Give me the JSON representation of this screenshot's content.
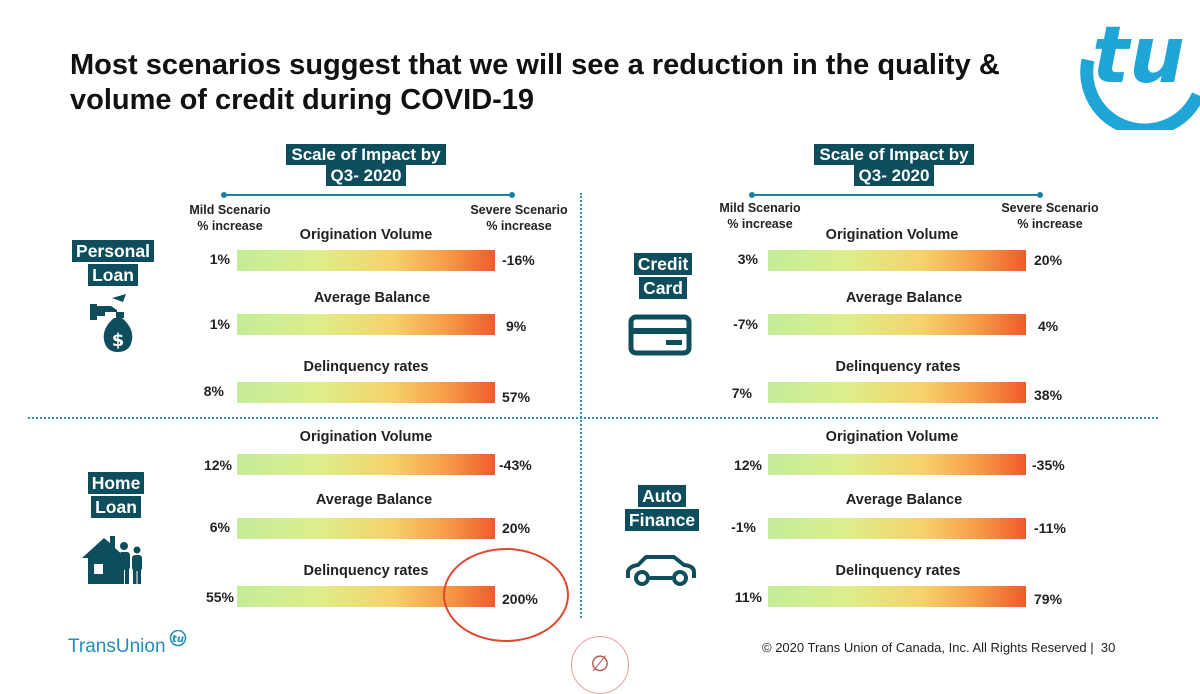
{
  "slide": {
    "title": "Most scenarios suggest that we will see a reduction in the quality & volume of credit during COVID-19",
    "copyright": "© 2020 Trans Union of Canada, Inc. All Rights Reserved |",
    "page_number": "30",
    "footer_brand": "TransUnion",
    "logo_text": "tu",
    "nav_glyph": "∅"
  },
  "scale": {
    "header": [
      "Scale of Impact by",
      "Q3- 2020"
    ],
    "mild_label": [
      "Mild Scenario",
      "% increase"
    ],
    "severe_label": [
      "Severe Scenario",
      "% increase"
    ]
  },
  "quadrants": {
    "personal": {
      "label": [
        "Personal",
        "Loan"
      ],
      "metrics": [
        {
          "name": "Origination Volume",
          "mild": "1%",
          "severe": "-16%"
        },
        {
          "name": "Average Balance",
          "mild": "1%",
          "severe": "9%"
        },
        {
          "name": "Delinquency rates",
          "mild": "8%",
          "severe": "57%"
        }
      ]
    },
    "credit": {
      "label": [
        "Credit",
        "Card"
      ],
      "metrics": [
        {
          "name": "Origination Volume",
          "mild": "3%",
          "severe": "20%"
        },
        {
          "name": "Average Balance",
          "mild": "-7%",
          "severe": "4%"
        },
        {
          "name": "Delinquency rates",
          "mild": "7%",
          "severe": "38%"
        }
      ]
    },
    "home": {
      "label": [
        "Home",
        "Loan"
      ],
      "metrics": [
        {
          "name": "Origination Volume",
          "mild": "12%",
          "severe": "-43%"
        },
        {
          "name": "Average Balance",
          "mild": "6%",
          "severe": "20%"
        },
        {
          "name": "Delinquency rates",
          "mild": "55%",
          "severe": "200%"
        }
      ]
    },
    "auto": {
      "label": [
        "Auto",
        "Finance"
      ],
      "metrics": [
        {
          "name": "Origination Volume",
          "mild": "12%",
          "severe": "-35%"
        },
        {
          "name": "Average Balance",
          "mild": "-1%",
          "severe": "-11%"
        },
        {
          "name": "Delinquency rates",
          "mild": "11%",
          "severe": "79%"
        }
      ]
    }
  },
  "colors": {
    "label_bg": "#0e4d5c",
    "accent": "#1fa6d6",
    "highlight": "#e2472e"
  }
}
